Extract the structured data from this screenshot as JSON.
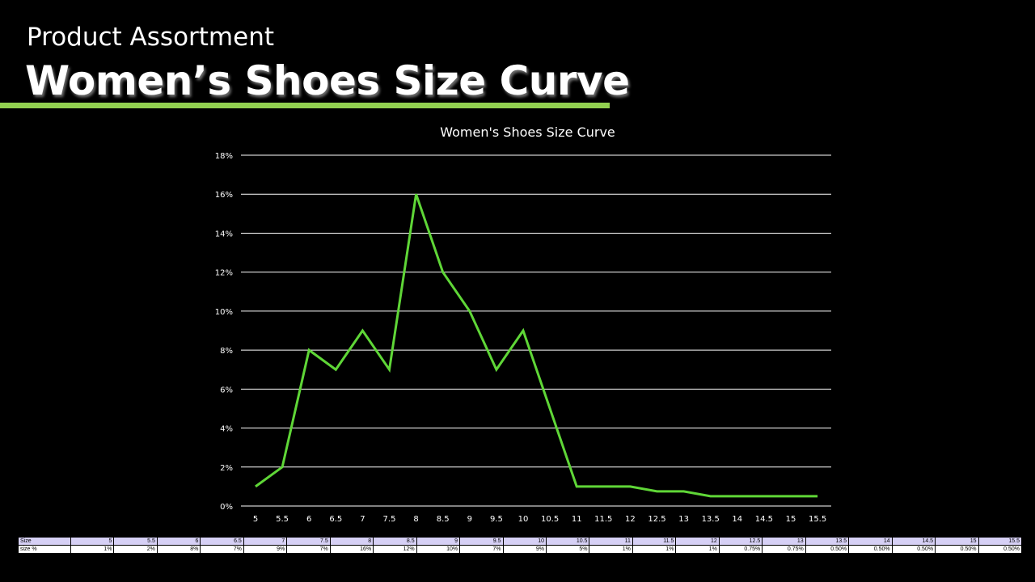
{
  "header": {
    "subtitle": "Product Assortment",
    "title": "Women’s Shoes Size Curve",
    "accent_color": "#92d050"
  },
  "chart_data": {
    "type": "line",
    "title": "Women's Shoes Size Curve",
    "xlabel": "",
    "ylabel": "",
    "categories": [
      "5",
      "5.5",
      "6",
      "6.5",
      "7",
      "7.5",
      "8",
      "8.5",
      "9",
      "9.5",
      "10",
      "10.5",
      "11",
      "11.5",
      "12",
      "12.5",
      "13",
      "13.5",
      "14",
      "14.5",
      "15",
      "15.5"
    ],
    "series": [
      {
        "values": [
          1,
          2,
          8,
          7,
          9,
          7,
          16,
          12,
          10,
          7,
          9,
          5,
          1,
          1,
          1,
          0.75,
          0.75,
          0.5,
          0.5,
          0.5,
          0.5,
          0.5
        ],
        "color": "#5fd637"
      }
    ],
    "ylim": [
      0,
      18
    ],
    "yticks": [
      "0%",
      "2%",
      "4%",
      "6%",
      "8%",
      "10%",
      "12%",
      "14%",
      "16%",
      "18%"
    ],
    "grid": true,
    "legend": "none"
  },
  "table": {
    "row_headers": [
      "Size",
      "size %"
    ],
    "sizes": [
      "5",
      "5.5",
      "6",
      "6.5",
      "7",
      "7.5",
      "8",
      "8.5",
      "9",
      "9.5",
      "10",
      "10.5",
      "11",
      "11.5",
      "12",
      "12.5",
      "13",
      "13.5",
      "14",
      "14.5",
      "15",
      "15.5"
    ],
    "percents": [
      "1%",
      "2%",
      "8%",
      "7%",
      "9%",
      "7%",
      "16%",
      "12%",
      "10%",
      "7%",
      "9%",
      "5%",
      "1%",
      "1%",
      "1%",
      "0.75%",
      "0.75%",
      "0.50%",
      "0.50%",
      "0.50%",
      "0.50%",
      "0.50%"
    ]
  }
}
